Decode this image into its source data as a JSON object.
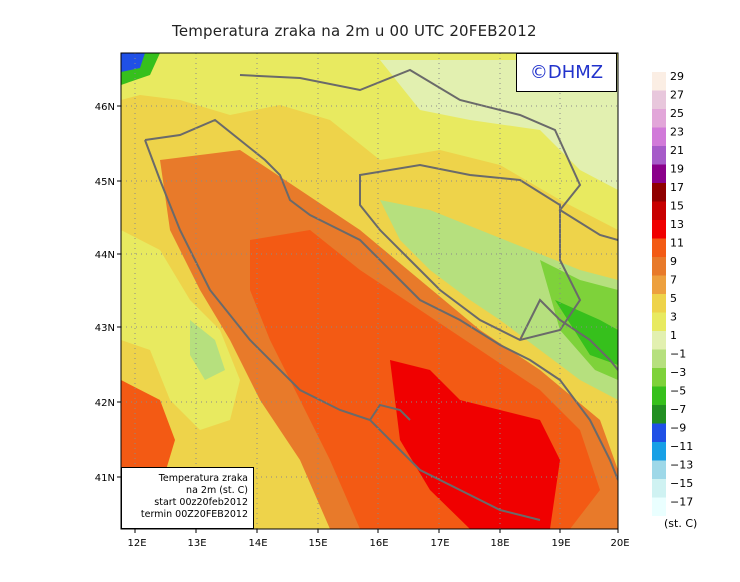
{
  "title": "Temperatura zraka na 2m u 00 UTC 20FEB2012",
  "logo_text": "©DHMZ",
  "info_box": {
    "line1": "Temperatura zraka",
    "line2": "na 2m (st. C)",
    "line3": "start 00z20feb2012",
    "line4": "termin 00Z20FEB2012"
  },
  "lon_ticks": [
    "12E",
    "13E",
    "14E",
    "15E",
    "16E",
    "17E",
    "18E",
    "19E",
    "20E"
  ],
  "lat_ticks": [
    "46N",
    "45N",
    "44N",
    "43N",
    "42N",
    "41N"
  ],
  "legend": {
    "unit": "(st. C)",
    "labels": [
      "29",
      "27",
      "25",
      "23",
      "21",
      "19",
      "17",
      "15",
      "13",
      "11",
      "9",
      "7",
      "5",
      "3",
      "1",
      "−1",
      "−3",
      "−5",
      "−7",
      "−9",
      "−11",
      "−13",
      "−15",
      "−17"
    ],
    "colors": [
      "#fbeee4",
      "#e8c7dc",
      "#e2a6d9",
      "#d17ad9",
      "#a65bc9",
      "#8a008a",
      "#900000",
      "#c80000",
      "#f00000",
      "#f35a14",
      "#e87a2a",
      "#eda03e",
      "#eed34a",
      "#e8ea60",
      "#e2f0b0",
      "#b6e07e",
      "#7ed23a",
      "#36c01c",
      "#228f22",
      "#2050e6",
      "#18a0e6",
      "#9ed8e8",
      "#cff2f2",
      "#eaffff"
    ]
  },
  "colors": {
    "sea_warm": "#f05a14",
    "sea_hot": "#f00000",
    "land_mild": "#e8ea60",
    "coast": "#6a6a6a"
  }
}
